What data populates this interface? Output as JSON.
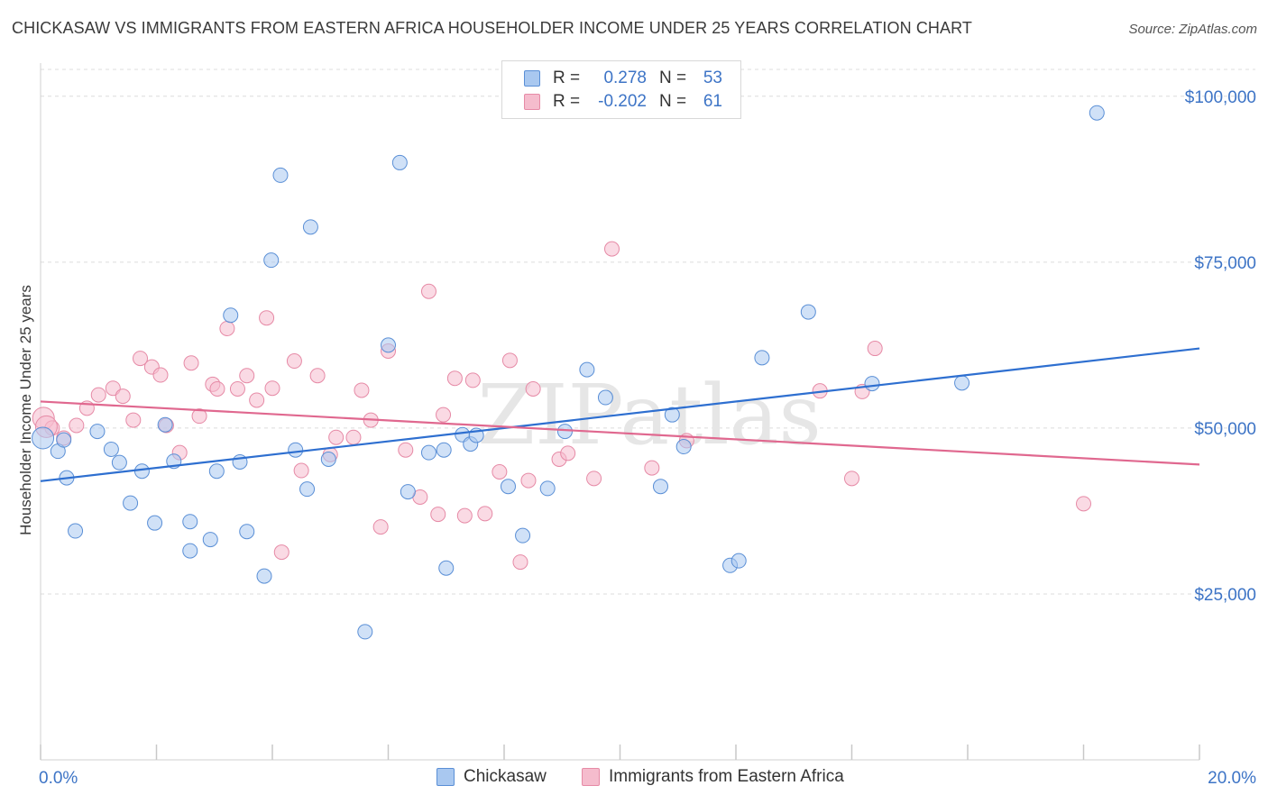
{
  "header": {
    "title": "CHICKASAW VS IMMIGRANTS FROM EASTERN AFRICA HOUSEHOLDER INCOME UNDER 25 YEARS CORRELATION CHART",
    "source": "Source: ZipAtlas.com"
  },
  "watermark": "ZIPatlas",
  "legend": {
    "rows": [
      {
        "r_label": "R =",
        "r_value": "0.278",
        "n_label": "N =",
        "n_value": "53",
        "color": "#a9c8f0"
      },
      {
        "r_label": "R =",
        "r_value": "-0.202",
        "n_label": "N =",
        "n_value": "61",
        "color": "#f5bccd"
      }
    ],
    "bottom": [
      "Chickasaw",
      "Immigrants from Eastern Africa"
    ]
  },
  "colors": {
    "chickasaw_fill": "#a9c8f0",
    "chickasaw_stroke": "#5a8fd6",
    "chickasaw_line": "#2e6fd0",
    "eafrica_fill": "#f5bccd",
    "eafrica_stroke": "#e68aa6",
    "eafrica_line": "#e0688f",
    "tick_label": "#3d74c6",
    "grid": "#dcdcdc"
  },
  "chart_data": {
    "type": "scatter",
    "title": "CHICKASAW VS IMMIGRANTS FROM EASTERN AFRICA HOUSEHOLDER INCOME UNDER 25 YEARS CORRELATION CHART",
    "xlabel": "",
    "ylabel": "Householder Income Under 25 years",
    "xlim": [
      0,
      20
    ],
    "ylim": [
      0,
      105000
    ],
    "x_tick_labels": [
      "0.0%",
      "20.0%"
    ],
    "y_ticks": [
      25000,
      50000,
      75000,
      100000
    ],
    "y_tick_labels": [
      "$25,000",
      "$50,000",
      "$75,000",
      "$100,000"
    ],
    "grid": true,
    "legend_position": "top-center",
    "series": [
      {
        "name": "Chickasaw",
        "r": 0.278,
        "n": 53,
        "trend": [
          [
            0,
            42000
          ],
          [
            20,
            62000
          ]
        ],
        "points": [
          [
            0.04,
            48500
          ],
          [
            0.3,
            46500
          ],
          [
            0.45,
            42500
          ],
          [
            0.6,
            34500
          ],
          [
            0.98,
            49500
          ],
          [
            1.22,
            46800
          ],
          [
            1.36,
            44800
          ],
          [
            1.55,
            38700
          ],
          [
            1.75,
            43500
          ],
          [
            1.97,
            35700
          ],
          [
            2.15,
            50500
          ],
          [
            2.3,
            45000
          ],
          [
            2.58,
            31500
          ],
          [
            2.58,
            35900
          ],
          [
            2.93,
            33200
          ],
          [
            3.04,
            43500
          ],
          [
            3.28,
            67000
          ],
          [
            3.44,
            44900
          ],
          [
            3.56,
            34400
          ],
          [
            3.86,
            27700
          ],
          [
            3.98,
            75300
          ],
          [
            4.14,
            88100
          ],
          [
            4.4,
            46700
          ],
          [
            4.6,
            40800
          ],
          [
            4.66,
            80300
          ],
          [
            4.97,
            45300
          ],
          [
            5.6,
            19300
          ],
          [
            6.0,
            62500
          ],
          [
            6.2,
            90000
          ],
          [
            6.34,
            40400
          ],
          [
            6.7,
            46300
          ],
          [
            6.96,
            46700
          ],
          [
            7.0,
            28900
          ],
          [
            7.28,
            49000
          ],
          [
            7.42,
            47600
          ],
          [
            7.52,
            48900
          ],
          [
            8.07,
            41200
          ],
          [
            8.32,
            33800
          ],
          [
            8.75,
            40900
          ],
          [
            9.05,
            49500
          ],
          [
            9.43,
            58800
          ],
          [
            9.75,
            54600
          ],
          [
            10.7,
            41200
          ],
          [
            10.9,
            52000
          ],
          [
            11.1,
            47200
          ],
          [
            11.9,
            29300
          ],
          [
            12.05,
            30000
          ],
          [
            12.45,
            60600
          ],
          [
            13.25,
            67500
          ],
          [
            14.35,
            56700
          ],
          [
            15.9,
            56800
          ],
          [
            18.23,
            97500
          ],
          [
            0.4,
            48200
          ]
        ]
      },
      {
        "name": "Immigrants from Eastern Africa",
        "r": -0.202,
        "n": 61,
        "trend": [
          [
            0,
            54000
          ],
          [
            20,
            44500
          ]
        ],
        "points": [
          [
            0.05,
            51500
          ],
          [
            0.2,
            50000
          ],
          [
            0.4,
            48500
          ],
          [
            0.62,
            50400
          ],
          [
            0.8,
            53000
          ],
          [
            1.0,
            55000
          ],
          [
            1.25,
            56000
          ],
          [
            1.42,
            54800
          ],
          [
            1.6,
            51200
          ],
          [
            1.72,
            60500
          ],
          [
            1.92,
            59200
          ],
          [
            2.07,
            58000
          ],
          [
            2.17,
            50400
          ],
          [
            2.4,
            46300
          ],
          [
            2.6,
            59800
          ],
          [
            2.74,
            51800
          ],
          [
            2.97,
            56600
          ],
          [
            3.05,
            55900
          ],
          [
            3.22,
            65000
          ],
          [
            3.4,
            55900
          ],
          [
            3.56,
            57900
          ],
          [
            3.73,
            54200
          ],
          [
            3.9,
            66600
          ],
          [
            4.0,
            56000
          ],
          [
            4.16,
            31300
          ],
          [
            4.38,
            60100
          ],
          [
            4.5,
            43600
          ],
          [
            4.78,
            57900
          ],
          [
            5.0,
            46000
          ],
          [
            5.1,
            48600
          ],
          [
            5.4,
            48600
          ],
          [
            5.54,
            55700
          ],
          [
            5.7,
            51200
          ],
          [
            5.87,
            35100
          ],
          [
            6.0,
            61600
          ],
          [
            6.3,
            46700
          ],
          [
            6.55,
            39600
          ],
          [
            6.7,
            70600
          ],
          [
            6.86,
            37000
          ],
          [
            6.95,
            52000
          ],
          [
            7.15,
            57500
          ],
          [
            7.32,
            36800
          ],
          [
            7.46,
            57200
          ],
          [
            7.67,
            37100
          ],
          [
            7.92,
            43400
          ],
          [
            8.1,
            60200
          ],
          [
            8.28,
            29800
          ],
          [
            8.42,
            42100
          ],
          [
            8.5,
            55900
          ],
          [
            8.95,
            45300
          ],
          [
            9.1,
            46200
          ],
          [
            9.55,
            42400
          ],
          [
            9.86,
            77000
          ],
          [
            10.55,
            44000
          ],
          [
            11.15,
            48100
          ],
          [
            13.45,
            55600
          ],
          [
            14.0,
            42400
          ],
          [
            14.18,
            55500
          ],
          [
            14.4,
            62000
          ],
          [
            18.0,
            38600
          ],
          [
            0.1,
            50200
          ]
        ]
      }
    ]
  }
}
